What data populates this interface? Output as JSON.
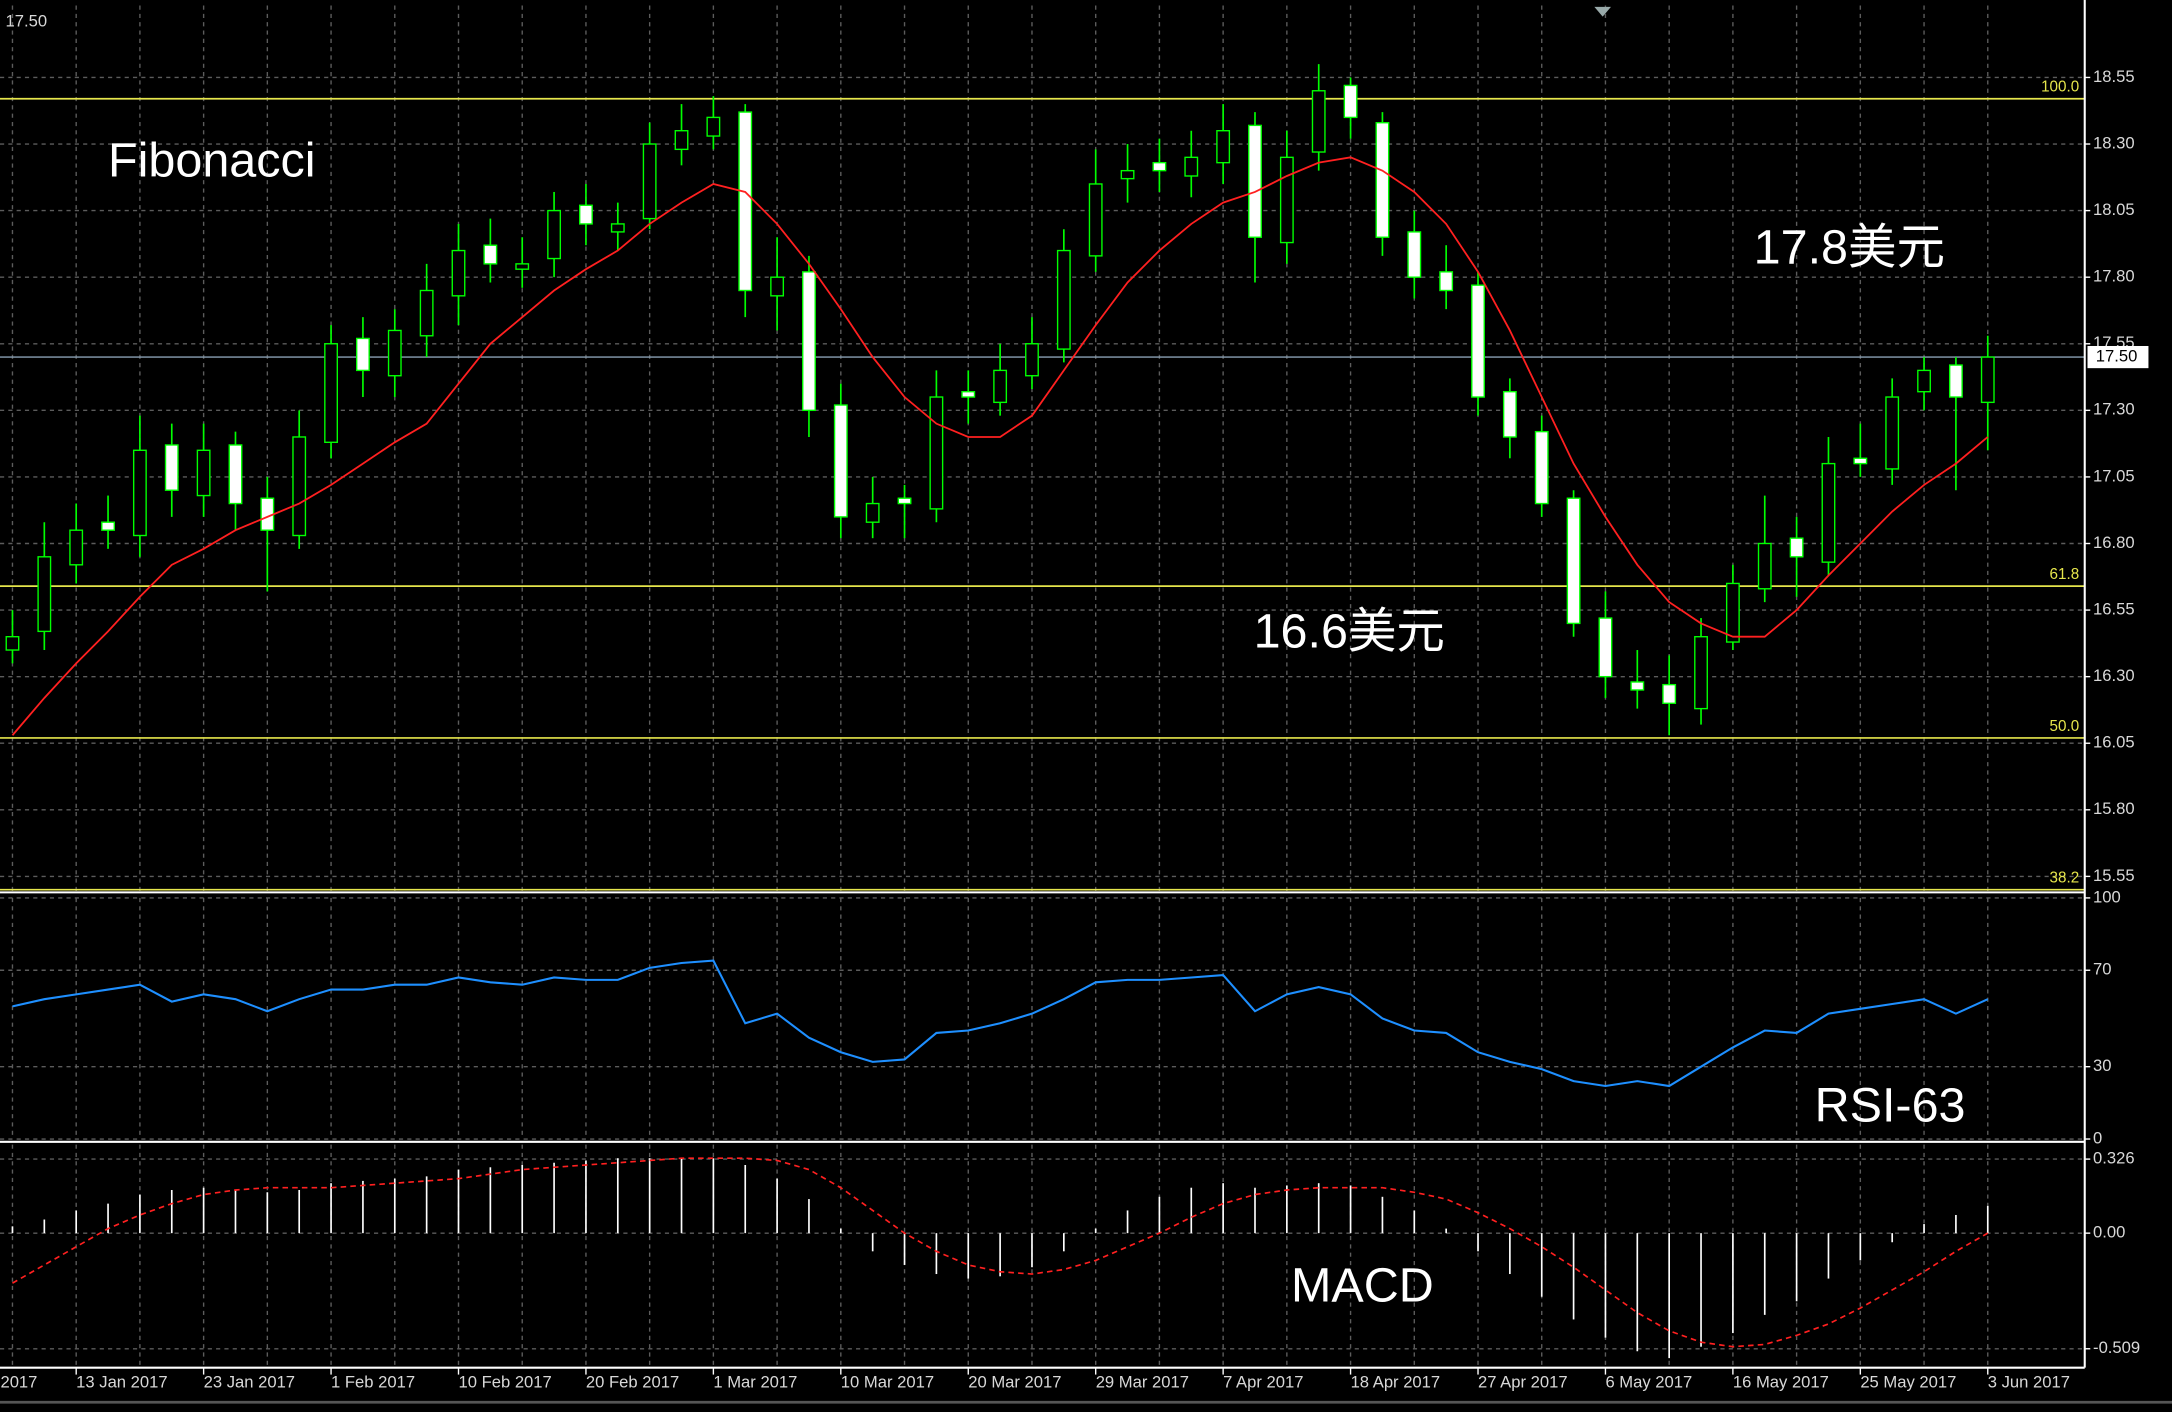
{
  "chart_data": [
    {
      "type": "candlestick",
      "annotations": [
        "Fibonacci",
        "17.8美元",
        "16.6美元"
      ],
      "left_fragment": "2017",
      "categories": [
        null,
        null,
        "13 Jan 2017",
        null,
        null,
        null,
        "23 Jan 2017",
        null,
        null,
        null,
        "1 Feb 2017",
        null,
        null,
        null,
        "10 Feb 2017",
        null,
        null,
        null,
        "20 Feb 2017",
        null,
        null,
        null,
        "1 Mar 2017",
        null,
        null,
        null,
        "10 Mar 2017",
        null,
        null,
        null,
        "20 Mar 2017",
        null,
        null,
        null,
        "29 Mar 2017",
        null,
        null,
        null,
        "7 Apr 2017",
        null,
        null,
        null,
        "18 Apr 2017",
        null,
        null,
        null,
        "27 Apr 2017",
        null,
        null,
        null,
        "6 May 2017",
        null,
        null,
        null,
        "16 May 2017",
        null,
        null,
        null,
        "25 May 2017",
        null,
        null,
        null,
        "3 Jun 2017"
      ],
      "open": [
        16.4,
        16.47,
        16.72,
        16.88,
        16.83,
        17.17,
        16.98,
        17.17,
        16.97,
        16.83,
        17.18,
        17.57,
        17.43,
        17.58,
        17.73,
        17.92,
        17.83,
        17.87,
        18.07,
        17.97,
        18.02,
        18.28,
        18.33,
        18.42,
        17.73,
        17.82,
        17.32,
        16.88,
        16.97,
        16.93,
        17.37,
        17.33,
        17.43,
        17.53,
        17.88,
        18.17,
        18.23,
        18.18,
        18.23,
        18.37,
        17.93,
        18.27,
        18.52,
        18.38,
        17.97,
        17.82,
        17.77,
        17.37,
        17.22,
        16.97,
        16.52,
        16.28,
        16.27,
        16.18,
        16.43,
        16.63,
        16.82,
        16.73,
        17.12,
        17.08,
        17.37,
        17.47,
        17.33
      ],
      "high": [
        16.55,
        16.88,
        16.95,
        16.98,
        17.28,
        17.25,
        17.25,
        17.22,
        17.05,
        17.3,
        17.62,
        17.65,
        17.68,
        17.85,
        18.0,
        18.02,
        17.95,
        18.12,
        18.15,
        18.08,
        18.38,
        18.45,
        18.48,
        18.45,
        17.95,
        17.88,
        17.4,
        17.05,
        17.02,
        17.45,
        17.45,
        17.55,
        17.65,
        17.98,
        18.28,
        18.3,
        18.32,
        18.35,
        18.45,
        18.42,
        18.35,
        18.6,
        18.55,
        18.42,
        18.05,
        17.92,
        17.82,
        17.42,
        17.28,
        17.0,
        16.62,
        16.4,
        16.38,
        16.52,
        16.72,
        16.98,
        16.9,
        17.2,
        17.25,
        17.42,
        17.5,
        17.5,
        17.58
      ],
      "low": [
        16.35,
        16.4,
        16.65,
        16.78,
        16.75,
        16.9,
        16.9,
        16.85,
        16.62,
        16.78,
        17.12,
        17.35,
        17.35,
        17.5,
        17.62,
        17.78,
        17.76,
        17.8,
        17.92,
        17.9,
        17.98,
        18.22,
        18.28,
        17.65,
        17.6,
        17.2,
        16.82,
        16.82,
        16.82,
        16.88,
        17.25,
        17.28,
        17.38,
        17.48,
        17.82,
        18.08,
        18.12,
        18.1,
        18.15,
        17.78,
        17.85,
        18.2,
        18.32,
        17.88,
        17.72,
        17.68,
        17.28,
        17.12,
        16.9,
        16.45,
        16.22,
        16.18,
        16.08,
        16.12,
        16.4,
        16.58,
        16.6,
        16.68,
        17.05,
        17.02,
        17.3,
        17.0,
        17.15
      ],
      "close": [
        16.45,
        16.75,
        16.85,
        16.85,
        17.15,
        17.0,
        17.15,
        16.95,
        16.85,
        17.2,
        17.55,
        17.45,
        17.6,
        17.75,
        17.9,
        17.85,
        17.85,
        18.05,
        18.0,
        18.0,
        18.3,
        18.35,
        18.4,
        17.75,
        17.8,
        17.3,
        16.9,
        16.95,
        16.95,
        17.35,
        17.35,
        17.45,
        17.55,
        17.9,
        18.15,
        18.2,
        18.2,
        18.25,
        18.35,
        17.95,
        18.25,
        18.5,
        18.4,
        17.95,
        17.8,
        17.75,
        17.35,
        17.2,
        16.95,
        16.5,
        16.3,
        16.25,
        16.2,
        16.45,
        16.65,
        16.8,
        16.75,
        17.1,
        17.1,
        17.35,
        17.45,
        17.35,
        17.5
      ],
      "up_fill": "#000000",
      "down_fill": "#ffffff",
      "wick_color": "#00ff00",
      "ma": {
        "color": "#ff2020",
        "values": [
          16.08,
          16.22,
          16.35,
          16.47,
          16.6,
          16.72,
          16.78,
          16.85,
          16.9,
          16.95,
          17.02,
          17.1,
          17.18,
          17.25,
          17.4,
          17.55,
          17.65,
          17.75,
          17.83,
          17.9,
          18.0,
          18.08,
          18.15,
          18.12,
          18.0,
          17.85,
          17.68,
          17.5,
          17.35,
          17.25,
          17.2,
          17.2,
          17.28,
          17.45,
          17.62,
          17.78,
          17.9,
          18.0,
          18.08,
          18.12,
          18.18,
          18.23,
          18.25,
          18.2,
          18.12,
          18.0,
          17.82,
          17.6,
          17.35,
          17.1,
          16.9,
          16.72,
          16.58,
          16.5,
          16.45,
          16.45,
          16.55,
          16.68,
          16.8,
          16.92,
          17.02,
          17.1,
          17.2
        ]
      },
      "levels": [
        {
          "value": 18.47,
          "label": "100.0"
        },
        {
          "value": 16.64,
          "label": "61.8"
        },
        {
          "value": 16.07,
          "label": "50.0"
        },
        {
          "value": 15.5,
          "label": "38.2"
        }
      ],
      "level_color": "#e6e64c",
      "current_price": {
        "value": 17.5,
        "label": "17.50"
      },
      "ylim": [
        15.49,
        18.82
      ],
      "yticks": [
        {
          "value": 15.55,
          "label": "15.55"
        },
        {
          "value": 15.8,
          "label": "15.80"
        },
        16.05,
        {
          "value": 16.3,
          "label": "16.30"
        },
        16.55,
        {
          "value": 16.8,
          "label": "16.80"
        },
        17.05,
        {
          "value": 17.3,
          "label": "17.30"
        },
        17.55,
        {
          "value": 17.8,
          "label": "17.80"
        },
        18.05,
        {
          "value": 18.3,
          "label": "18.30"
        },
        18.55
      ],
      "grid": true
    },
    {
      "type": "line",
      "annotation": "RSI-63",
      "color": "#1e8fff",
      "values": [
        55,
        58,
        60,
        62,
        64,
        57,
        60,
        58,
        53,
        58,
        62,
        62,
        64,
        64,
        67,
        65,
        64,
        67,
        66,
        66,
        71,
        73,
        74,
        48,
        52,
        42,
        36,
        32,
        33,
        44,
        45,
        48,
        52,
        58,
        65,
        66,
        66,
        67,
        68,
        53,
        60,
        63,
        60,
        50,
        45,
        44,
        36,
        32,
        29,
        24,
        22,
        24,
        22,
        30,
        38,
        45,
        44,
        52,
        54,
        56,
        58,
        52,
        58
      ],
      "ylim": [
        0,
        100
      ],
      "yticks": [
        0,
        30,
        70,
        100
      ],
      "grid": true
    },
    {
      "type": "bar",
      "annotation": "MACD",
      "color": "#ffffff",
      "values": [
        0.03,
        0.06,
        0.1,
        0.13,
        0.17,
        0.19,
        0.2,
        0.19,
        0.18,
        0.19,
        0.22,
        0.23,
        0.24,
        0.25,
        0.28,
        0.29,
        0.3,
        0.31,
        0.32,
        0.33,
        0.33,
        0.33,
        0.33,
        0.3,
        0.24,
        0.15,
        0.02,
        -0.08,
        -0.14,
        -0.18,
        -0.2,
        -0.19,
        -0.15,
        -0.08,
        0.02,
        0.1,
        0.16,
        0.2,
        0.22,
        0.2,
        0.21,
        0.22,
        0.21,
        0.16,
        0.1,
        0.02,
        -0.08,
        -0.18,
        -0.28,
        -0.38,
        -0.46,
        -0.52,
        -0.55,
        -0.5,
        -0.44,
        -0.36,
        -0.3,
        -0.2,
        -0.12,
        -0.04,
        0.04,
        0.08,
        0.12
      ],
      "signal": {
        "color": "#ff2020",
        "values": [
          -0.22,
          -0.14,
          -0.06,
          0.02,
          0.08,
          0.13,
          0.17,
          0.19,
          0.2,
          0.2,
          0.2,
          0.21,
          0.22,
          0.23,
          0.24,
          0.26,
          0.28,
          0.29,
          0.3,
          0.31,
          0.32,
          0.33,
          0.33,
          0.33,
          0.32,
          0.28,
          0.2,
          0.1,
          0.0,
          -0.08,
          -0.14,
          -0.17,
          -0.18,
          -0.16,
          -0.12,
          -0.06,
          0.0,
          0.07,
          0.13,
          0.17,
          0.19,
          0.2,
          0.2,
          0.2,
          0.18,
          0.15,
          0.09,
          0.02,
          -0.06,
          -0.15,
          -0.25,
          -0.35,
          -0.43,
          -0.48,
          -0.5,
          -0.49,
          -0.45,
          -0.4,
          -0.33,
          -0.25,
          -0.17,
          -0.08,
          0.0
        ]
      },
      "ylim": [
        -0.58,
        0.39
      ],
      "yticks": [
        -0.509,
        {
          "value": 0,
          "label": "0.00"
        },
        0.326
      ],
      "grid": true
    }
  ]
}
